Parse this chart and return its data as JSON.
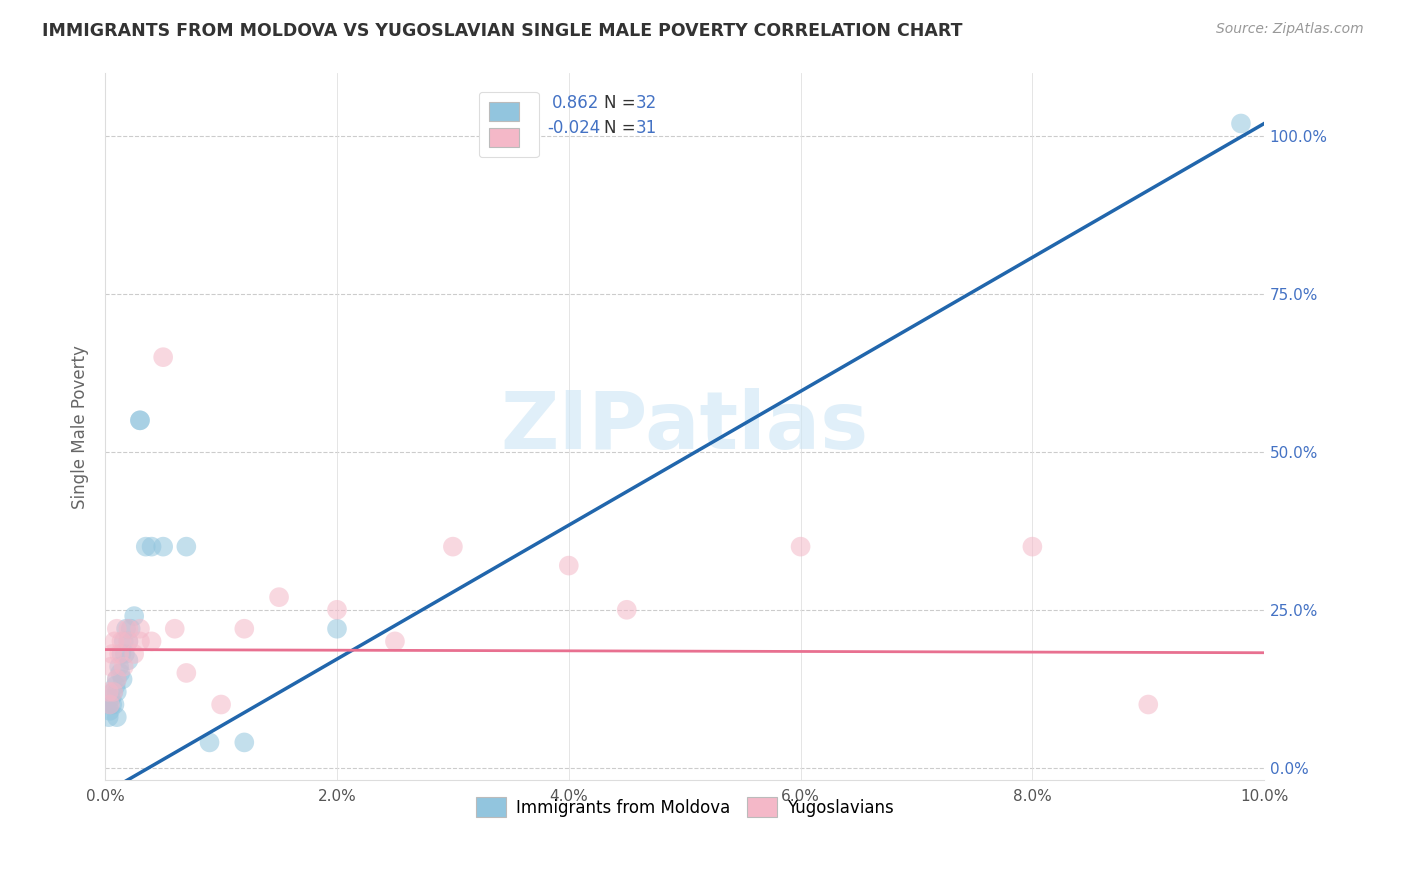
{
  "title": "IMMIGRANTS FROM MOLDOVA VS YUGOSLAVIAN SINGLE MALE POVERTY CORRELATION CHART",
  "source": "Source: ZipAtlas.com",
  "ylabel": "Single Male Poverty",
  "xlim": [
    0.0,
    0.1
  ],
  "ylim": [
    -0.02,
    1.1
  ],
  "xticks": [
    0.0,
    0.02,
    0.04,
    0.06,
    0.08,
    0.1
  ],
  "yticks": [
    0.0,
    0.25,
    0.5,
    0.75,
    1.0
  ],
  "xtick_labels": [
    "0.0%",
    "2.0%",
    "4.0%",
    "6.0%",
    "8.0%",
    "10.0%"
  ],
  "ytick_labels_right": [
    "0.0%",
    "25.0%",
    "50.0%",
    "75.0%",
    "100.0%"
  ],
  "blue_scatter_color": "#92c5de",
  "pink_scatter_color": "#f4b8c8",
  "blue_line_color": "#2166ac",
  "pink_line_color": "#e87090",
  "blue_text_color": "#4472c4",
  "tick_color": "#4472c4",
  "watermark": "ZIPatlas",
  "moldova_x": [
    0.0003,
    0.0003,
    0.0004,
    0.0005,
    0.0006,
    0.0007,
    0.0008,
    0.0009,
    0.001,
    0.001,
    0.001,
    0.0012,
    0.0013,
    0.0014,
    0.0015,
    0.0016,
    0.0017,
    0.0018,
    0.002,
    0.002,
    0.0022,
    0.0025,
    0.003,
    0.003,
    0.0035,
    0.004,
    0.005,
    0.007,
    0.009,
    0.012,
    0.02,
    0.098
  ],
  "moldova_y": [
    0.08,
    0.1,
    0.09,
    0.11,
    0.1,
    0.12,
    0.1,
    0.13,
    0.12,
    0.14,
    0.08,
    0.16,
    0.15,
    0.18,
    0.14,
    0.2,
    0.18,
    0.22,
    0.2,
    0.17,
    0.22,
    0.24,
    0.55,
    0.55,
    0.35,
    0.35,
    0.35,
    0.35,
    0.04,
    0.04,
    0.22,
    1.02
  ],
  "yugo_x": [
    0.0003,
    0.0004,
    0.0005,
    0.0006,
    0.0007,
    0.0008,
    0.001,
    0.001,
    0.0012,
    0.0014,
    0.0016,
    0.002,
    0.002,
    0.0025,
    0.003,
    0.003,
    0.004,
    0.005,
    0.006,
    0.007,
    0.01,
    0.012,
    0.015,
    0.02,
    0.025,
    0.03,
    0.04,
    0.045,
    0.06,
    0.08,
    0.09
  ],
  "yugo_y": [
    0.12,
    0.1,
    0.16,
    0.18,
    0.12,
    0.2,
    0.14,
    0.22,
    0.18,
    0.2,
    0.16,
    0.2,
    0.22,
    0.18,
    0.2,
    0.22,
    0.2,
    0.65,
    0.22,
    0.15,
    0.1,
    0.22,
    0.27,
    0.25,
    0.2,
    0.35,
    0.32,
    0.25,
    0.35,
    0.35,
    0.1
  ],
  "blue_line_x0": 0.0,
  "blue_line_y0": -0.04,
  "blue_line_x1": 0.1,
  "blue_line_y1": 1.02,
  "pink_line_x0": 0.0,
  "pink_line_y0": 0.187,
  "pink_line_x1": 0.1,
  "pink_line_y1": 0.182
}
